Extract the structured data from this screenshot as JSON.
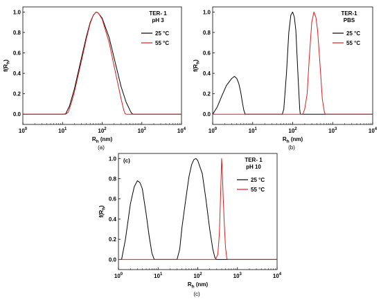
{
  "chart_data": [
    {
      "type": "line",
      "panel": "(a)",
      "title_lines": [
        "TER- 1",
        "pH 3"
      ],
      "xlabel": {
        "main": "R",
        "sub": "h",
        "unit": " (nm)"
      },
      "ylabel": {
        "main": "f(R",
        "sub": "h",
        "close": ")"
      },
      "xscale": "log",
      "xlim": [
        1,
        10000
      ],
      "ylim": [
        -0.1,
        1.05
      ],
      "xticks": [
        {
          "base": "10",
          "exp": "0"
        },
        {
          "base": "10",
          "exp": "1"
        },
        {
          "base": "10",
          "exp": "2"
        },
        {
          "base": "10",
          "exp": "3"
        },
        {
          "base": "10",
          "exp": "4"
        }
      ],
      "yticks": [
        "0.0",
        "0.2",
        "0.4",
        "0.6",
        "0.8",
        "1.0"
      ],
      "legend_position": "top-right",
      "series": [
        {
          "name": "25 °C",
          "color": "#000000",
          "x": [
            1,
            10,
            12,
            15,
            20,
            30,
            40,
            50,
            60,
            70,
            80,
            100,
            150,
            200,
            300,
            400,
            500,
            550,
            600,
            10000
          ],
          "y": [
            0,
            0,
            0.003,
            0.08,
            0.25,
            0.55,
            0.76,
            0.9,
            0.97,
            1.0,
            0.99,
            0.94,
            0.75,
            0.55,
            0.27,
            0.12,
            0.04,
            0.01,
            0,
            0
          ]
        },
        {
          "name": "55 °C",
          "color": "#e41a1c",
          "x": [
            1,
            12,
            14,
            17,
            20,
            30,
            40,
            50,
            60,
            70,
            80,
            100,
            150,
            200,
            300,
            350,
            380,
            400,
            10000
          ],
          "y": [
            0,
            0,
            0.02,
            0.12,
            0.22,
            0.52,
            0.74,
            0.89,
            0.97,
            1.0,
            0.99,
            0.93,
            0.7,
            0.47,
            0.15,
            0.04,
            0.005,
            0,
            0
          ]
        }
      ]
    },
    {
      "type": "line",
      "panel": "(b)",
      "title_lines": [
        "TER-1",
        "PBS"
      ],
      "xlabel": {
        "main": "R",
        "sub": "h",
        "unit": " (nm)"
      },
      "ylabel": {
        "main": "f(R",
        "sub": "h",
        "close": ")"
      },
      "xscale": "log",
      "xlim": [
        1,
        10000
      ],
      "ylim": [
        -0.1,
        1.05
      ],
      "xticks": [
        {
          "base": "10",
          "exp": "0"
        },
        {
          "base": "10",
          "exp": "1"
        },
        {
          "base": "10",
          "exp": "2"
        },
        {
          "base": "10",
          "exp": "3"
        },
        {
          "base": "10",
          "exp": "4"
        }
      ],
      "yticks": [
        "0.0",
        "0.2",
        "0.4",
        "0.6",
        "0.8",
        "1.0"
      ],
      "legend_position": "top-right",
      "series": [
        {
          "name": "25 °C",
          "color": "#000000",
          "x": [
            1,
            1.3,
            1.7,
            2.2,
            3.0,
            3.5,
            4.0,
            4.5,
            5.0,
            5.5,
            6.0,
            6.5,
            10,
            55,
            60,
            70,
            80,
            90,
            100,
            110,
            120,
            135,
            150,
            155,
            10000
          ],
          "y": [
            0,
            0.07,
            0.18,
            0.28,
            0.35,
            0.37,
            0.35,
            0.3,
            0.22,
            0.12,
            0.04,
            0,
            0,
            0,
            0.05,
            0.4,
            0.8,
            0.97,
            1.0,
            0.95,
            0.82,
            0.4,
            0.05,
            0,
            0
          ]
        },
        {
          "name": "55 °C",
          "color": "#e41a1c",
          "x": [
            1,
            180,
            200,
            230,
            260,
            300,
            340,
            380,
            420,
            480,
            550,
            620,
            650,
            10000
          ],
          "y": [
            0,
            0,
            0.05,
            0.2,
            0.55,
            0.9,
            1.0,
            0.95,
            0.82,
            0.5,
            0.15,
            0.02,
            0,
            0
          ]
        }
      ]
    },
    {
      "type": "line",
      "panel": "(c)",
      "title_lines": [
        "TER- 1",
        "pH 10"
      ],
      "xlabel": {
        "main": "R",
        "sub": "h",
        "unit": " (nm)"
      },
      "ylabel": {
        "main": "f(R",
        "sub": "h",
        "close": ")"
      },
      "xscale": "log",
      "xlim": [
        1,
        10000
      ],
      "ylim": [
        -0.1,
        1.05
      ],
      "xticks": [
        {
          "base": "10",
          "exp": "0"
        },
        {
          "base": "10",
          "exp": "1"
        },
        {
          "base": "10",
          "exp": "2"
        },
        {
          "base": "10",
          "exp": "3"
        },
        {
          "base": "10",
          "exp": "4"
        }
      ],
      "yticks": [
        "0.0",
        "0.2",
        "0.4",
        "0.6",
        "0.8",
        "1.0"
      ],
      "legend_position": "top-right",
      "series": [
        {
          "name": "25 °C",
          "color": "#000000",
          "x": [
            1,
            1.2,
            1.5,
            2.0,
            2.5,
            3.0,
            3.5,
            4.0,
            5.0,
            6.0,
            7.0,
            8.0,
            30,
            35,
            40,
            50,
            60,
            70,
            80,
            90,
            100,
            130,
            160,
            200,
            240,
            270,
            290,
            10000
          ],
          "y": [
            0,
            0,
            0.2,
            0.55,
            0.72,
            0.78,
            0.76,
            0.7,
            0.45,
            0.22,
            0.06,
            0,
            0,
            0.1,
            0.32,
            0.6,
            0.82,
            0.94,
            0.99,
            1.0,
            0.98,
            0.85,
            0.6,
            0.3,
            0.1,
            0.02,
            0,
            0
          ]
        },
        {
          "name": "55 °C",
          "color": "#e41a1c",
          "x": [
            1,
            280,
            320,
            350,
            370,
            390,
            400,
            410,
            430,
            460,
            500,
            540,
            560,
            10000
          ],
          "y": [
            0,
            0,
            0.05,
            0.25,
            0.55,
            0.85,
            1.0,
            0.93,
            0.7,
            0.4,
            0.12,
            0.01,
            0,
            0
          ]
        }
      ]
    }
  ]
}
